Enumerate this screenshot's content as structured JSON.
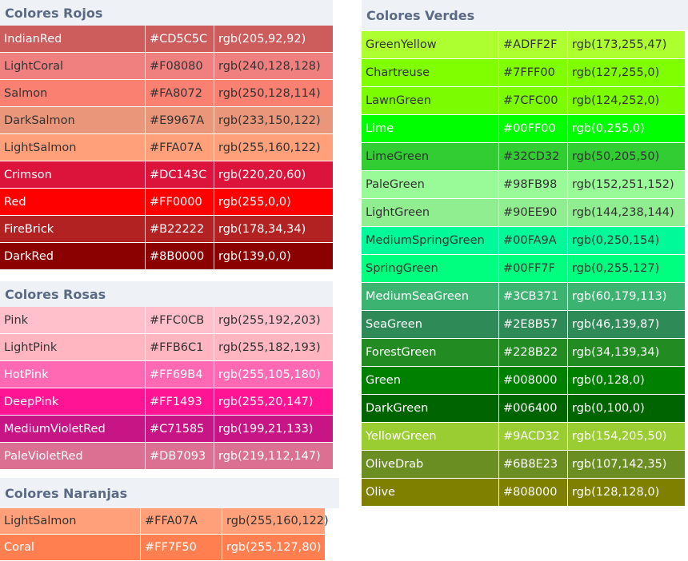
{
  "rojos": {
    "title": "Colores Rojos",
    "rows": [
      {
        "name": "IndianRed",
        "hex": "#CD5C5C",
        "rgb": "rgb(205,92,92)",
        "bg": "#CD5C5C",
        "fg": "#ffffff"
      },
      {
        "name": "LightCoral",
        "hex": "#F08080",
        "rgb": "rgb(240,128,128)",
        "bg": "#F08080",
        "fg": "#333333"
      },
      {
        "name": "Salmon",
        "hex": "#FA8072",
        "rgb": "rgb(250,128,114)",
        "bg": "#FA8072",
        "fg": "#333333"
      },
      {
        "name": "DarkSalmon",
        "hex": "#E9967A",
        "rgb": "rgb(233,150,122)",
        "bg": "#E9967A",
        "fg": "#333333"
      },
      {
        "name": "LightSalmon",
        "hex": "#FFA07A",
        "rgb": "rgb(255,160,122)",
        "bg": "#FFA07A",
        "fg": "#333333"
      },
      {
        "name": "Crimson",
        "hex": "#DC143C",
        "rgb": "rgb(220,20,60)",
        "bg": "#DC143C",
        "fg": "#ffffff"
      },
      {
        "name": "Red",
        "hex": "#FF0000",
        "rgb": "rgb(255,0,0)",
        "bg": "#FF0000",
        "fg": "#ffffff"
      },
      {
        "name": "FireBrick",
        "hex": "#B22222",
        "rgb": "rgb(178,34,34)",
        "bg": "#B22222",
        "fg": "#ffffff"
      },
      {
        "name": "DarkRed",
        "hex": "#8B0000",
        "rgb": "rgb(139,0,0)",
        "bg": "#8B0000",
        "fg": "#ffffff"
      }
    ]
  },
  "rosas": {
    "title": "Colores Rosas",
    "rows": [
      {
        "name": "Pink",
        "hex": "#FFC0CB",
        "rgb": "rgb(255,192,203)",
        "bg": "#FFC0CB",
        "fg": "#333333"
      },
      {
        "name": "LightPink",
        "hex": "#FFB6C1",
        "rgb": "rgb(255,182,193)",
        "bg": "#FFB6C1",
        "fg": "#333333"
      },
      {
        "name": "HotPink",
        "hex": "#FF69B4",
        "rgb": "rgb(255,105,180)",
        "bg": "#FF69B4",
        "fg": "#ffffff"
      },
      {
        "name": "DeepPink",
        "hex": "#FF1493",
        "rgb": "rgb(255,20,147)",
        "bg": "#FF1493",
        "fg": "#ffffff"
      },
      {
        "name": "MediumVioletRed",
        "hex": "#C71585",
        "rgb": "rgb(199,21,133)",
        "bg": "#C71585",
        "fg": "#ffffff"
      },
      {
        "name": "PaleVioletRed",
        "hex": "#DB7093",
        "rgb": "rgb(219,112,147)",
        "bg": "#DB7093",
        "fg": "#ffffff"
      }
    ]
  },
  "naranjas": {
    "title": "Colores Naranjas",
    "rows": [
      {
        "name": "LightSalmon",
        "hex": "#FFA07A",
        "rgb": "rgb(255,160,122)",
        "bg": "#FFA07A",
        "fg": "#333333"
      },
      {
        "name": "Coral",
        "hex": "#FF7F50",
        "rgb": "rgb(255,127,80)",
        "bg": "#FF7F50",
        "fg": "#ffffff"
      }
    ]
  },
  "verdes": {
    "title": "Colores Verdes",
    "rows": [
      {
        "name": "GreenYellow",
        "hex": "#ADFF2F",
        "rgb": "rgb(173,255,47)",
        "bg": "#ADFF2F",
        "fg": "#333333"
      },
      {
        "name": "Chartreuse",
        "hex": "#7FFF00",
        "rgb": "rgb(127,255,0)",
        "bg": "#7FFF00",
        "fg": "#333333"
      },
      {
        "name": "LawnGreen",
        "hex": "#7CFC00",
        "rgb": "rgb(124,252,0)",
        "bg": "#7CFC00",
        "fg": "#333333"
      },
      {
        "name": "Lime",
        "hex": "#00FF00",
        "rgb": "rgb(0,255,0)",
        "bg": "#00FF00",
        "fg": "#ffffff"
      },
      {
        "name": "LimeGreen",
        "hex": "#32CD32",
        "rgb": "rgb(50,205,50)",
        "bg": "#32CD32",
        "fg": "#333333"
      },
      {
        "name": "PaleGreen",
        "hex": "#98FB98",
        "rgb": "rgb(152,251,152)",
        "bg": "#98FB98",
        "fg": "#333333"
      },
      {
        "name": "LightGreen",
        "hex": "#90EE90",
        "rgb": "rgb(144,238,144)",
        "bg": "#90EE90",
        "fg": "#333333"
      },
      {
        "name": "MediumSpringGreen",
        "hex": "#00FA9A",
        "rgb": "rgb(0,250,154)",
        "bg": "#00FA9A",
        "fg": "#333333"
      },
      {
        "name": "SpringGreen",
        "hex": "#00FF7F",
        "rgb": "rgb(0,255,127)",
        "bg": "#00FF7F",
        "fg": "#333333"
      },
      {
        "name": "MediumSeaGreen",
        "hex": "#3CB371",
        "rgb": "rgb(60,179,113)",
        "bg": "#3CB371",
        "fg": "#ffffff"
      },
      {
        "name": "SeaGreen",
        "hex": "#2E8B57",
        "rgb": "rgb(46,139,87)",
        "bg": "#2E8B57",
        "fg": "#ffffff"
      },
      {
        "name": "ForestGreen",
        "hex": "#228B22",
        "rgb": "rgb(34,139,34)",
        "bg": "#228B22",
        "fg": "#ffffff"
      },
      {
        "name": "Green",
        "hex": "#008000",
        "rgb": "rgb(0,128,0)",
        "bg": "#008000",
        "fg": "#ffffff"
      },
      {
        "name": "DarkGreen",
        "hex": "#006400",
        "rgb": "rgb(0,100,0)",
        "bg": "#006400",
        "fg": "#ffffff"
      },
      {
        "name": "YellowGreen",
        "hex": "#9ACD32",
        "rgb": "rgb(154,205,50)",
        "bg": "#9ACD32",
        "fg": "#ffffff"
      },
      {
        "name": "OliveDrab",
        "hex": "#6B8E23",
        "rgb": "rgb(107,142,35)",
        "bg": "#6B8E23",
        "fg": "#ffffff"
      },
      {
        "name": "Olive",
        "hex": "#808000",
        "rgb": "rgb(128,128,0)",
        "bg": "#808000",
        "fg": "#ffffff"
      }
    ]
  }
}
